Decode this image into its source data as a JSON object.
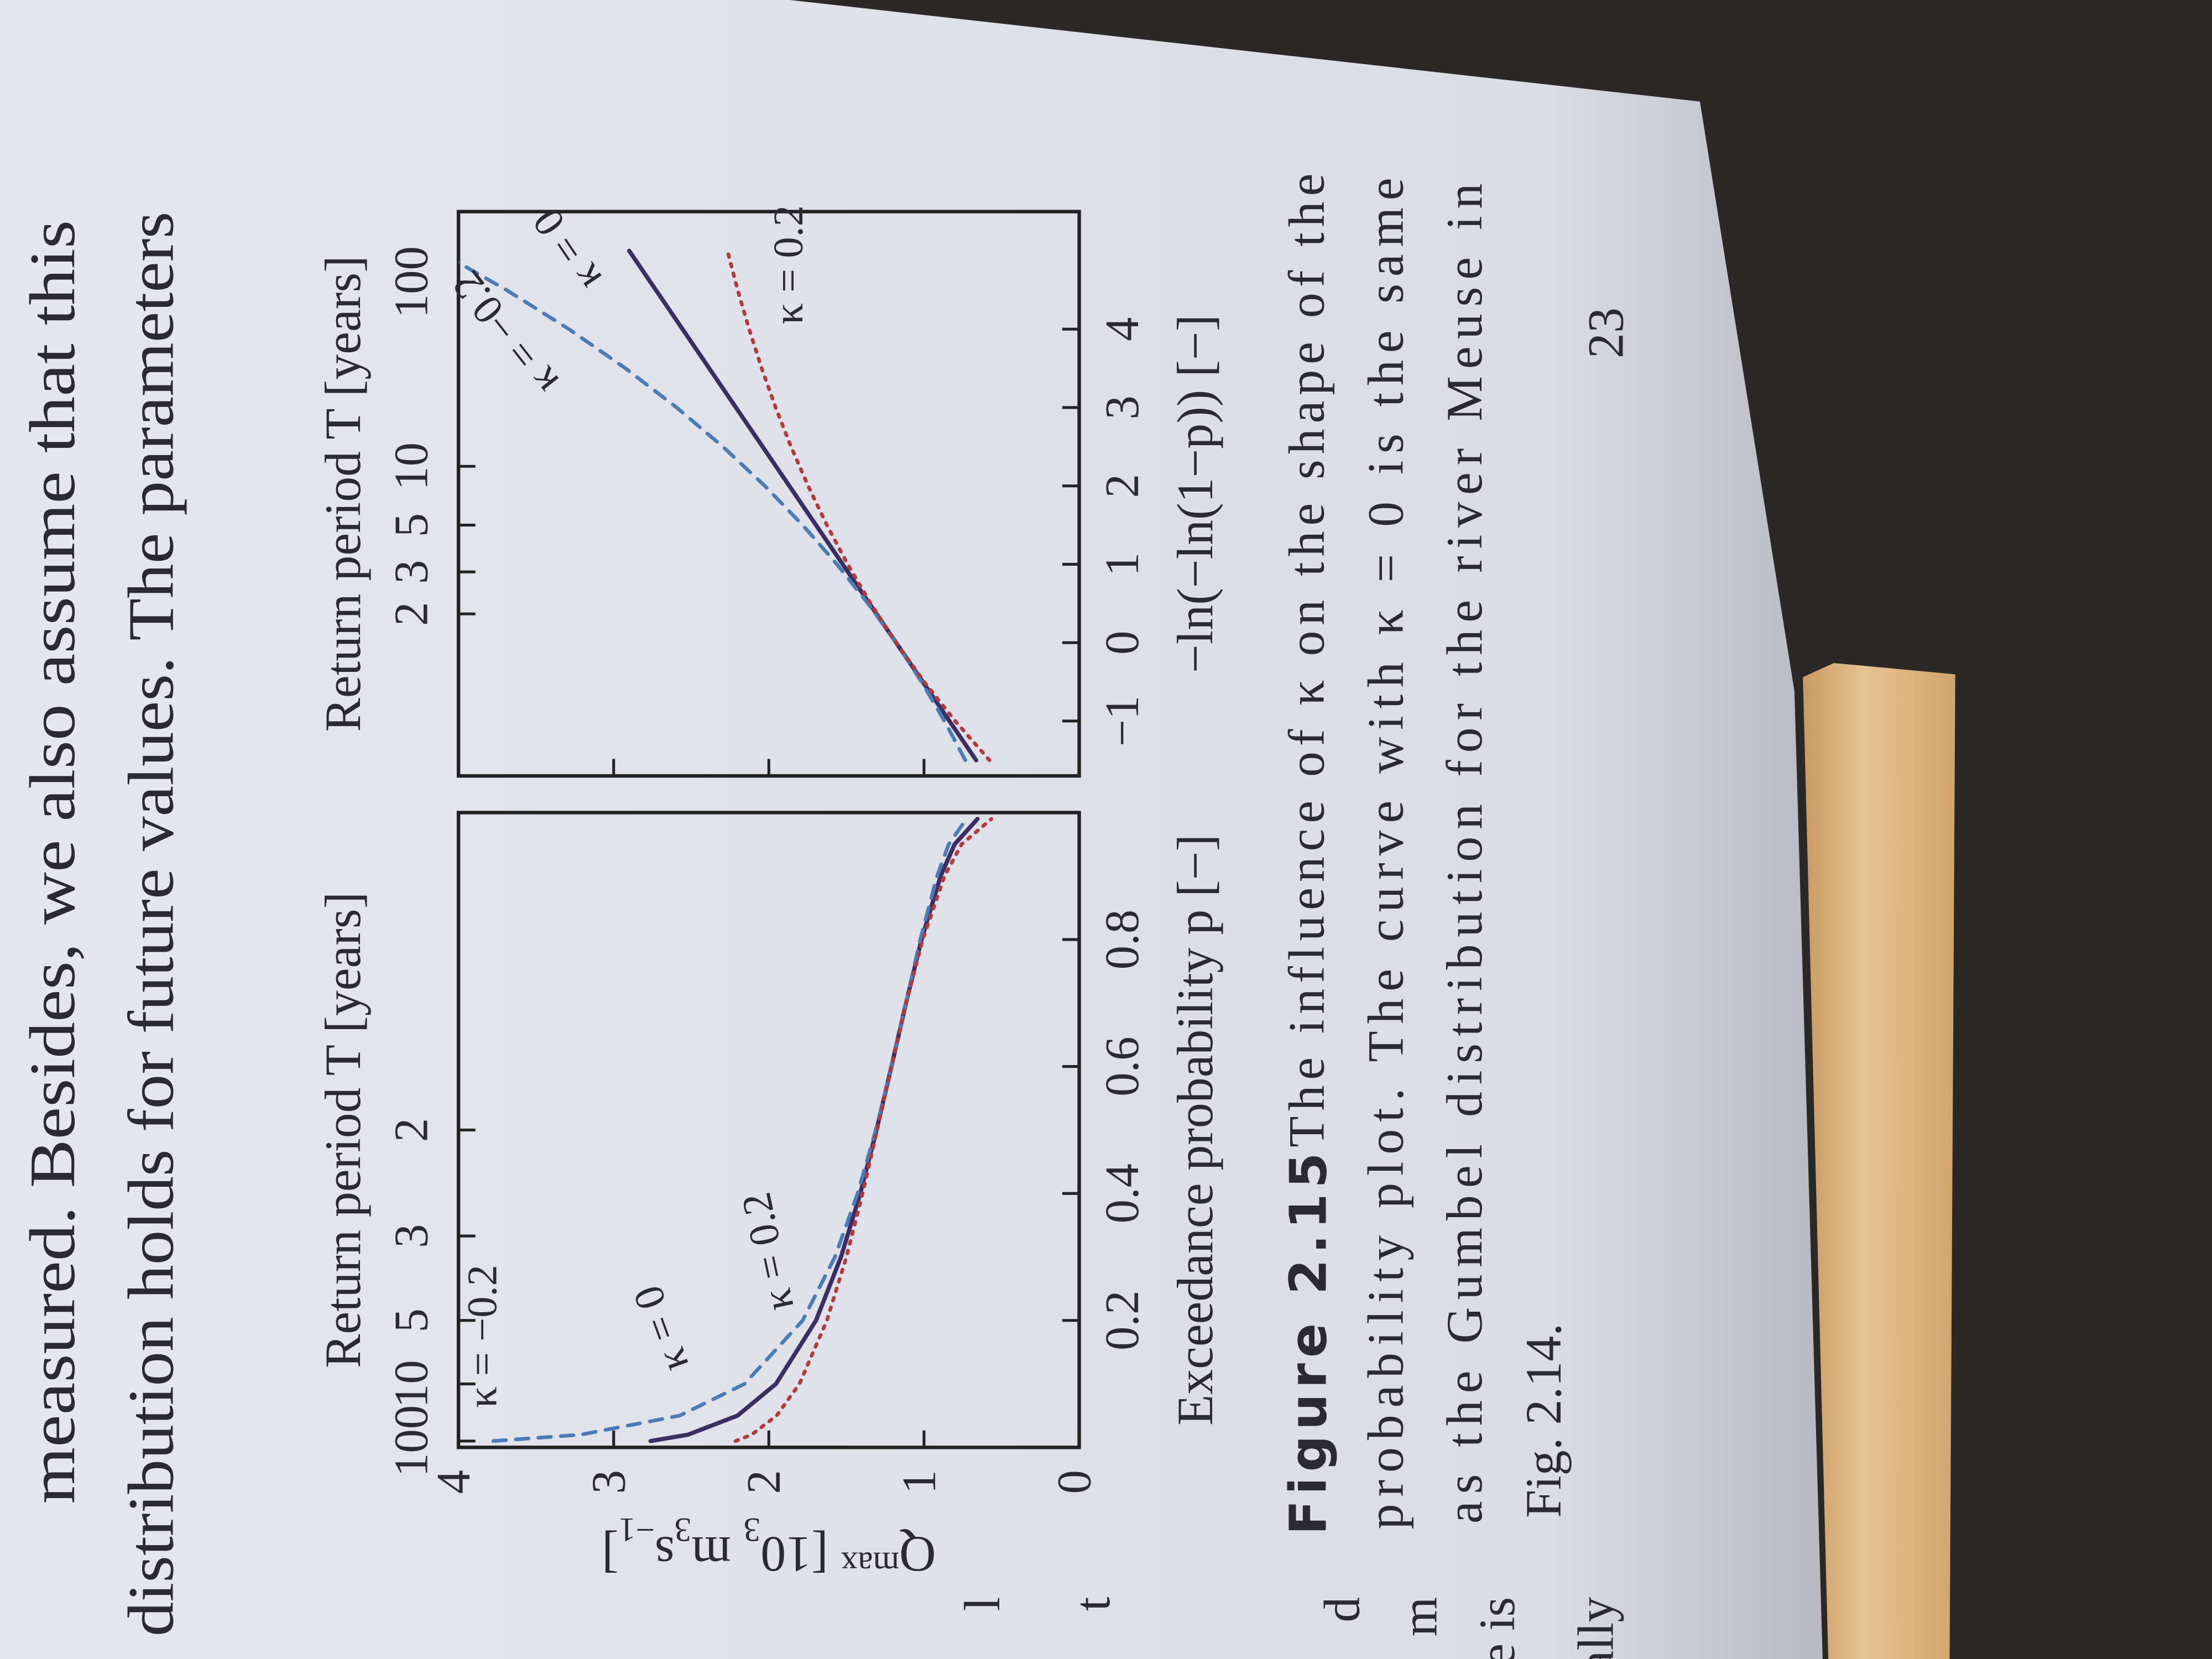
{
  "body_text": [
    "measured. Besides, we also assume that this",
    "distribution holds for future values. The parameters"
  ],
  "figure": {
    "caption_label": "Figure 2.15",
    "caption_lines": [
      "The influence of κ on the shape of the",
      "probability plot. The curve with κ = 0 is the same",
      "as the Gumbel distribution for the river Meuse in",
      "Fig. 2.14."
    ]
  },
  "page_number": "23",
  "facing_page_fragments": [
    "l",
    "t",
    "d",
    "m",
    "e is",
    "ally"
  ],
  "chart_data": [
    {
      "type": "line",
      "x2_label": "Return period T [years]",
      "xlabel": "Exceedance probability p [−]",
      "ylabel_parts": [
        "Q",
        "max",
        " [10",
        "3",
        " m",
        "3",
        "s",
        "−1",
        "]"
      ],
      "x": [
        0.01,
        0.02,
        0.05,
        0.1,
        0.2,
        0.3,
        0.4,
        0.5,
        0.6,
        0.7,
        0.8,
        0.9,
        0.95,
        0.99
      ],
      "xlim": [
        0,
        1
      ],
      "xticks": [
        0.2,
        0.4,
        0.6,
        0.8
      ],
      "x2ticks": [
        {
          "value": 0.01,
          "label": "100"
        },
        {
          "value": 0.1,
          "label": "10"
        },
        {
          "value": 0.2,
          "label": "5"
        },
        {
          "value": 0.333,
          "label": "3"
        },
        {
          "value": 0.5,
          "label": "2"
        }
      ],
      "ylim": [
        0,
        4
      ],
      "yticks": [
        0,
        1,
        2,
        3,
        4
      ],
      "ytick_labels": true,
      "series": [
        {
          "name": "κ = 0",
          "color": "#3b2e63",
          "style": "solid",
          "values": [
            2.762,
            2.522,
            2.202,
            1.954,
            1.696,
            1.535,
            1.411,
            1.306,
            1.21,
            1.116,
            1.016,
            0.893,
            0.803,
            0.655
          ]
        },
        {
          "name": "κ = −0.2",
          "color": "#4a7db8",
          "style": "dashed",
          "values": [
            3.776,
            3.213,
            2.575,
            2.157,
            1.782,
            1.574,
            1.428,
            1.311,
            1.21,
            1.117,
            1.024,
            0.916,
            0.841,
            0.727
          ]
        },
        {
          "name": "κ = 0.2",
          "color": "#b33a3a",
          "style": "dotted",
          "values": [
            2.215,
            2.111,
            1.95,
            1.803,
            1.626,
            1.5,
            1.396,
            1.302,
            1.21,
            1.115,
            1.008,
            0.868,
            0.758,
            0.566
          ]
        }
      ]
    },
    {
      "type": "line",
      "x2_label": "Return period T [years]",
      "xlabel": "−ln(−ln(1−p)) [−]",
      "x": [
        -1.5,
        -1,
        -0.5,
        0,
        0.5,
        1,
        1.5,
        2,
        2.5,
        3,
        3.5,
        4,
        4.5,
        5
      ],
      "xlim": [
        -1.7,
        5.5
      ],
      "xticks": [
        {
          "value": -1,
          "label": "−1"
        },
        0,
        1,
        2,
        3,
        4
      ],
      "x2ticks": [
        {
          "value": 0.367,
          "label": "2"
        },
        {
          "value": 0.903,
          "label": "3"
        },
        {
          "value": 1.5,
          "label": "5"
        },
        {
          "value": 2.25,
          "label": "10"
        },
        {
          "value": 4.6,
          "label": "100"
        }
      ],
      "ylim": [
        0,
        4
      ],
      "yticks": [
        0,
        1,
        2,
        3,
        4
      ],
      "ytick_labels": false,
      "series": [
        {
          "name": "κ = 0",
          "color": "#3b2e63",
          "style": "solid",
          "values": [
            0.664,
            0.836,
            1.008,
            1.18,
            1.352,
            1.524,
            1.696,
            1.868,
            2.04,
            2.212,
            2.384,
            2.556,
            2.728,
            2.9
          ]
        },
        {
          "name": "κ = −0.2",
          "color": "#4a7db8",
          "style": "dashed",
          "values": [
            0.734,
            0.868,
            1.016,
            1.18,
            1.361,
            1.561,
            1.782,
            2.026,
            2.296,
            2.594,
            2.924,
            3.288,
            3.691,
            4.135
          ]
        },
        {
          "name": "κ = 0.2",
          "color": "#b33a3a",
          "style": "dotted",
          "values": [
            0.578,
            0.799,
            0.999,
            1.18,
            1.344,
            1.492,
            1.626,
            1.747,
            1.857,
            1.956,
            2.046,
            2.127,
            2.201,
            2.267
          ]
        }
      ]
    }
  ]
}
